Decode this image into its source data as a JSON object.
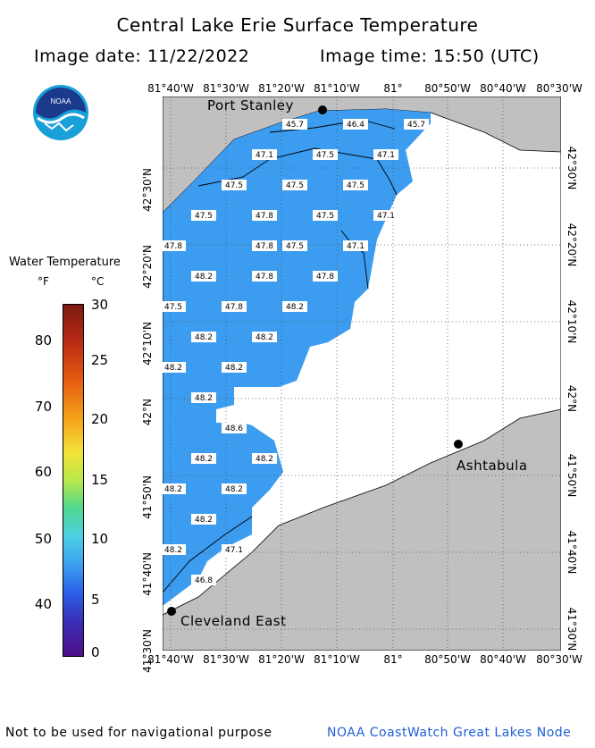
{
  "header": {
    "title": "Central Lake Erie Surface Temperature",
    "date_text": "Image date: 11/22/2022",
    "time_text": "Image time: 15:50 (UTC)"
  },
  "logo": {
    "text": "NOAA"
  },
  "axes": {
    "lon_labels": [
      "81°40'W",
      "81°30'W",
      "81°20'W",
      "81°10'W",
      "81°",
      "80°50'W",
      "80°40'W",
      "80°30'W"
    ],
    "lat_labels": [
      "42°30'N",
      "42°20'N",
      "42°10'N",
      "42°N",
      "41°50'N",
      "41°40'N",
      "41°30'N"
    ]
  },
  "places": {
    "port_stanley": "Port Stanley",
    "ashtabula": "Ashtabula",
    "cleveland_east": "Cleveland East"
  },
  "temperature_labels": [
    {
      "id": "t1",
      "value": "45.7"
    },
    {
      "id": "t2",
      "value": "46.4"
    },
    {
      "id": "t3",
      "value": "45.7"
    },
    {
      "id": "t4",
      "value": "47.1"
    },
    {
      "id": "t5",
      "value": "47.5"
    },
    {
      "id": "t6",
      "value": "47.1"
    },
    {
      "id": "t7",
      "value": "47.5"
    },
    {
      "id": "t8",
      "value": "47.5"
    },
    {
      "id": "t9",
      "value": "47.5"
    },
    {
      "id": "t10",
      "value": "47.5"
    },
    {
      "id": "t11",
      "value": "47.8"
    },
    {
      "id": "t12",
      "value": "47.5"
    },
    {
      "id": "t13",
      "value": "47.1"
    },
    {
      "id": "t14",
      "value": "47.8"
    },
    {
      "id": "t15",
      "value": "47.8"
    },
    {
      "id": "t16",
      "value": "47.5"
    },
    {
      "id": "t17",
      "value": "47.1"
    },
    {
      "id": "t18",
      "value": "48.2"
    },
    {
      "id": "t19",
      "value": "47.8"
    },
    {
      "id": "t20",
      "value": "47.8"
    },
    {
      "id": "t21",
      "value": "47.5"
    },
    {
      "id": "t22",
      "value": "47.8"
    },
    {
      "id": "t23",
      "value": "48.2"
    },
    {
      "id": "t24",
      "value": "48.2"
    },
    {
      "id": "t25",
      "value": "48.2"
    },
    {
      "id": "t26",
      "value": "48.2"
    },
    {
      "id": "t27",
      "value": "48.2"
    },
    {
      "id": "t28",
      "value": "48.2"
    },
    {
      "id": "t29",
      "value": "48.6"
    },
    {
      "id": "t30",
      "value": "48.2"
    },
    {
      "id": "t31",
      "value": "48.2"
    },
    {
      "id": "t32",
      "value": "48.2"
    },
    {
      "id": "t33",
      "value": "48.2"
    },
    {
      "id": "t34",
      "value": "48.2"
    },
    {
      "id": "t35",
      "value": "48.2"
    },
    {
      "id": "t36",
      "value": "47.1"
    },
    {
      "id": "t37",
      "value": "46.8"
    }
  ],
  "legend": {
    "title": "Water Temperature",
    "unit_f": "°F",
    "unit_c": "°C",
    "f_ticks": [
      "80",
      "70",
      "60",
      "50",
      "40"
    ],
    "c_ticks": [
      "30",
      "25",
      "20",
      "15",
      "10",
      "5",
      "0"
    ],
    "colors": {
      "water": "#3b9cf0",
      "land": "#c0c0c0",
      "grid": "#555555"
    }
  },
  "footer": {
    "left": "Not to be used for navigational purpose",
    "right": "NOAA CoastWatch Great Lakes Node"
  }
}
